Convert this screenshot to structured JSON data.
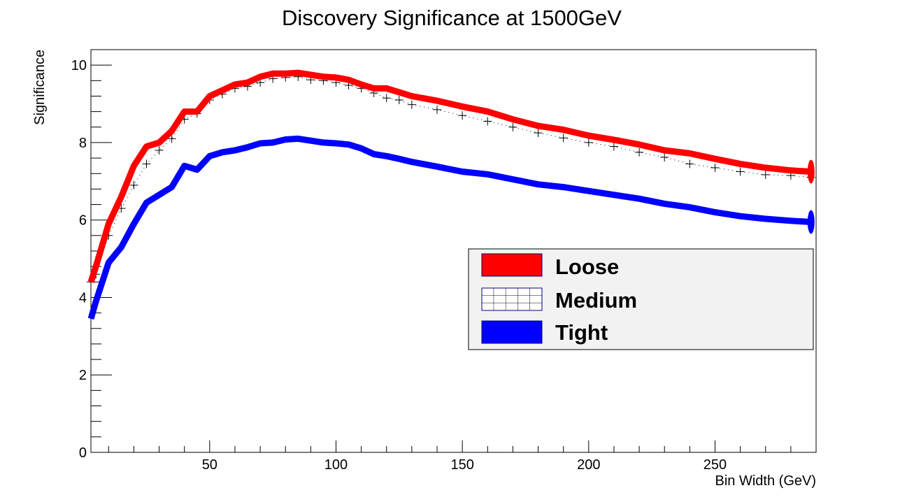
{
  "chart_data": {
    "type": "line",
    "title": "Discovery Significance at 1500GeV",
    "xlabel": "Bin Width (GeV)",
    "ylabel": "Significance",
    "xlim": [
      3,
      290
    ],
    "ylim": [
      0,
      10.4
    ],
    "xticks": [
      50,
      100,
      150,
      200,
      250
    ],
    "yticks": [
      0,
      2,
      4,
      6,
      8,
      10
    ],
    "grid": false,
    "legend_position": "center-right",
    "colors": {
      "loose": "#ff0000",
      "medium": "#000000",
      "tight": "#0000ff"
    },
    "series": [
      {
        "name": "Loose",
        "x": [
          3,
          5,
          10,
          15,
          20,
          25,
          30,
          35,
          40,
          45,
          50,
          55,
          60,
          65,
          70,
          75,
          80,
          85,
          90,
          95,
          100,
          105,
          110,
          115,
          120,
          125,
          130,
          140,
          150,
          160,
          170,
          180,
          190,
          200,
          210,
          220,
          230,
          240,
          250,
          260,
          270,
          280,
          288
        ],
        "y": [
          4.4,
          4.8,
          5.9,
          6.6,
          7.4,
          7.9,
          8.0,
          8.3,
          8.8,
          8.8,
          9.2,
          9.35,
          9.5,
          9.55,
          9.7,
          9.78,
          9.78,
          9.8,
          9.75,
          9.7,
          9.68,
          9.62,
          9.5,
          9.4,
          9.4,
          9.3,
          9.2,
          9.08,
          8.93,
          8.8,
          8.6,
          8.43,
          8.33,
          8.18,
          8.07,
          7.95,
          7.8,
          7.72,
          7.58,
          7.45,
          7.35,
          7.28,
          7.25
        ]
      },
      {
        "name": "Medium",
        "x": [
          3,
          5,
          10,
          15,
          20,
          25,
          30,
          35,
          40,
          45,
          50,
          55,
          60,
          65,
          70,
          75,
          80,
          85,
          90,
          95,
          100,
          105,
          110,
          115,
          120,
          125,
          130,
          140,
          150,
          160,
          170,
          180,
          190,
          200,
          210,
          220,
          230,
          240,
          250,
          260,
          270,
          280,
          288
        ],
        "y": [
          4.4,
          4.6,
          5.6,
          6.3,
          6.9,
          7.45,
          7.8,
          8.1,
          8.6,
          8.75,
          9.1,
          9.25,
          9.4,
          9.45,
          9.55,
          9.65,
          9.68,
          9.7,
          9.62,
          9.6,
          9.55,
          9.48,
          9.4,
          9.28,
          9.15,
          9.1,
          8.98,
          8.85,
          8.7,
          8.55,
          8.4,
          8.25,
          8.12,
          8.0,
          7.9,
          7.75,
          7.62,
          7.45,
          7.35,
          7.25,
          7.17,
          7.15,
          7.1
        ]
      },
      {
        "name": "Tight",
        "x": [
          3,
          5,
          10,
          15,
          20,
          25,
          30,
          35,
          40,
          45,
          50,
          55,
          60,
          65,
          70,
          75,
          80,
          85,
          90,
          95,
          100,
          105,
          110,
          115,
          120,
          125,
          130,
          140,
          150,
          160,
          170,
          180,
          190,
          200,
          210,
          220,
          230,
          240,
          250,
          260,
          270,
          280,
          288
        ],
        "y": [
          3.45,
          3.9,
          4.9,
          5.3,
          5.9,
          6.45,
          6.65,
          6.85,
          7.4,
          7.3,
          7.65,
          7.75,
          7.8,
          7.88,
          7.98,
          8.0,
          8.08,
          8.1,
          8.05,
          8.0,
          7.98,
          7.95,
          7.85,
          7.7,
          7.65,
          7.58,
          7.5,
          7.38,
          7.25,
          7.18,
          7.05,
          6.92,
          6.85,
          6.75,
          6.65,
          6.55,
          6.42,
          6.33,
          6.2,
          6.1,
          6.03,
          5.98,
          5.95
        ]
      }
    ]
  }
}
